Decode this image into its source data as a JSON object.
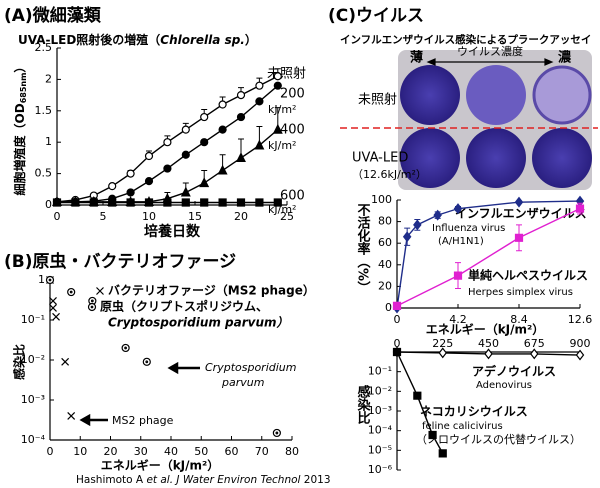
{
  "chart_data": [
    {
      "type": "line",
      "title": "(A)微細藻類",
      "subtitle": [
        "UVA-LED照射後の増殖（",
        "Chlorella sp.",
        "）"
      ],
      "ylabel": [
        "細胞増殖度（OD",
        "685nm",
        "）"
      ],
      "xlabel": "培養日数",
      "unit": "kJ/m²",
      "x": [
        0,
        2,
        4,
        6,
        8,
        10,
        12,
        14,
        16,
        18,
        20,
        22,
        24
      ],
      "xlim": [
        0,
        25
      ],
      "xticks": [
        0,
        5,
        10,
        15,
        20,
        25
      ],
      "ylim": [
        0,
        2.5
      ],
      "yticks": [
        0,
        0.5,
        1,
        1.5,
        2,
        2.5
      ],
      "error_bars": "up",
      "series": [
        {
          "name": "未照射",
          "color": "#000000",
          "marker": "circle-open",
          "values": [
            0.05,
            0.08,
            0.15,
            0.3,
            0.5,
            0.78,
            1.0,
            1.2,
            1.4,
            1.6,
            1.75,
            1.9,
            2.05
          ],
          "errors": [
            0,
            0,
            0.02,
            0.03,
            0.05,
            0.08,
            0.1,
            0.1,
            0.12,
            0.12,
            0.12,
            0.12,
            0.12
          ]
        },
        {
          "name": "200",
          "color": "#000000",
          "marker": "circle",
          "values": [
            0.05,
            0.05,
            0.06,
            0.1,
            0.2,
            0.38,
            0.58,
            0.8,
            1.0,
            1.2,
            1.4,
            1.65,
            1.9
          ]
        },
        {
          "name": "400",
          "color": "#000000",
          "marker": "triangle",
          "values": [
            0.05,
            0.05,
            0.05,
            0.05,
            0.05,
            0.05,
            0.1,
            0.2,
            0.35,
            0.55,
            0.75,
            0.95,
            1.2
          ],
          "errors": [
            0,
            0,
            0,
            0,
            0,
            0,
            0.1,
            0.15,
            0.2,
            0.25,
            0.3,
            0.3,
            0.35
          ]
        },
        {
          "name": "600",
          "color": "#000000",
          "marker": "square",
          "values": [
            0.04,
            0.04,
            0.04,
            0.04,
            0.04,
            0.04,
            0.04,
            0.04,
            0.04,
            0.04,
            0.04,
            0.04,
            0.04
          ]
        }
      ]
    },
    {
      "type": "scatter",
      "title": "(B)原虫・バクテリオファージ",
      "ylabel": "感染比",
      "xlabel": "エネルギー（kJ/m²）",
      "xlim": [
        0,
        80
      ],
      "xticks": [
        0,
        10,
        20,
        30,
        40,
        50,
        60,
        70,
        80
      ],
      "ylog": true,
      "ylim": [
        0.0001,
        1
      ],
      "yticks": [
        1,
        {
          "value": 0.1,
          "label": "10⁻¹"
        },
        {
          "value": 0.01,
          "label": "10⁻²"
        },
        {
          "value": 0.001,
          "label": "10⁻³"
        },
        {
          "value": 0.0001,
          "label": "10⁻⁴"
        }
      ],
      "series": [
        {
          "name": [
            "バクテリオファージ（MS2 phage）"
          ],
          "color": "#000000",
          "marker": "x",
          "x": [
            0,
            1,
            1,
            2,
            5,
            7
          ],
          "values": [
            1,
            0.3,
            0.2,
            0.12,
            0.009,
            0.0004
          ]
        },
        {
          "name": [
            "原虫（クリプトスポリジウム、",
            "Cryptosporidium parvum）"
          ],
          "color": "#000000",
          "marker": "circle-dot",
          "x": [
            0,
            7,
            14,
            25,
            32,
            75
          ],
          "values": [
            1,
            0.5,
            0.3,
            0.02,
            0.009,
            0.00015
          ]
        }
      ],
      "annotations": [
        [
          "Cryptosporidium",
          "parvum"
        ],
        [
          "MS2 phage"
        ]
      ],
      "citation": [
        "Hashimoto A ",
        "et al.",
        " J Water Environ Technol",
        " 2013"
      ]
    },
    {
      "type": "line",
      "ylabel": "不活化率（%）",
      "xlabel": "エネルギー（kJ/m²）",
      "xlim": [
        0,
        12.6
      ],
      "xticks": [
        0,
        4.2,
        8.4,
        12.6
      ],
      "ylim": [
        0,
        100
      ],
      "yticks": [
        0,
        20,
        40,
        60,
        80,
        100
      ],
      "error_bars": "both",
      "series": [
        {
          "name": "インフルエンザウイルス",
          "notes": [
            "Influenza virus",
            "(A/H1N1)"
          ],
          "color": "#1f2d8a",
          "marker": "diamond",
          "x": [
            0,
            0.7,
            1.4,
            2.8,
            4.2,
            8.4,
            12.6
          ],
          "values": [
            0,
            66,
            77,
            86,
            92,
            98,
            99
          ],
          "errors": [
            0,
            8,
            5,
            3,
            2,
            1,
            1
          ]
        },
        {
          "name": "単純ヘルペスウイルス",
          "notes": [
            "Herpes simplex virus"
          ],
          "color": "#e020d0",
          "marker": "square",
          "x": [
            0,
            4.2,
            8.4,
            12.6
          ],
          "values": [
            2,
            30,
            65,
            92
          ],
          "errors": [
            0,
            12,
            12,
            5
          ]
        }
      ]
    },
    {
      "type": "line",
      "ylabel": "感染比",
      "xaxis_position": "top",
      "xlim": [
        0,
        900
      ],
      "xticks": [
        0,
        225,
        450,
        675,
        900
      ],
      "ylog": true,
      "ylim": [
        1e-06,
        1
      ],
      "yticks": [
        {
          "value": 0.1,
          "label": "10⁻¹"
        },
        {
          "value": 0.01,
          "label": "10⁻²"
        },
        {
          "value": 0.001,
          "label": "10⁻³"
        },
        {
          "value": 0.0001,
          "label": "10⁻⁴"
        },
        {
          "value": 1e-05,
          "label": "10⁻⁵"
        },
        {
          "value": 1e-06,
          "label": "10⁻⁶"
        }
      ],
      "series": [
        {
          "name": "アデノウイルス",
          "notes": [
            "Adenovirus"
          ],
          "color": "#000000",
          "marker": "diamond-open",
          "x": [
            0,
            225,
            450,
            675,
            900
          ],
          "values": [
            1,
            0.9,
            0.8,
            0.8,
            0.7
          ]
        },
        {
          "name": "ネコカリシウイルス",
          "notes": [
            "feline calicivirus",
            "（ノロウイルスの代替ウイルス）"
          ],
          "color": "#000000",
          "marker": "square",
          "x": [
            0,
            100,
            175,
            225
          ],
          "values": [
            1,
            0.006,
            6e-05,
            7e-06
          ]
        }
      ]
    }
  ],
  "plaque_assay": {
    "title": "(C)ウイルス",
    "subtitle": "インフルエンザウイルス感染によるプラークアッセイ",
    "low": "薄",
    "axis": "ウイルス濃度",
    "high": "濃",
    "rows": [
      "未照射",
      "UVA-LED"
    ],
    "dose": "（12.6kJ/m²）"
  }
}
